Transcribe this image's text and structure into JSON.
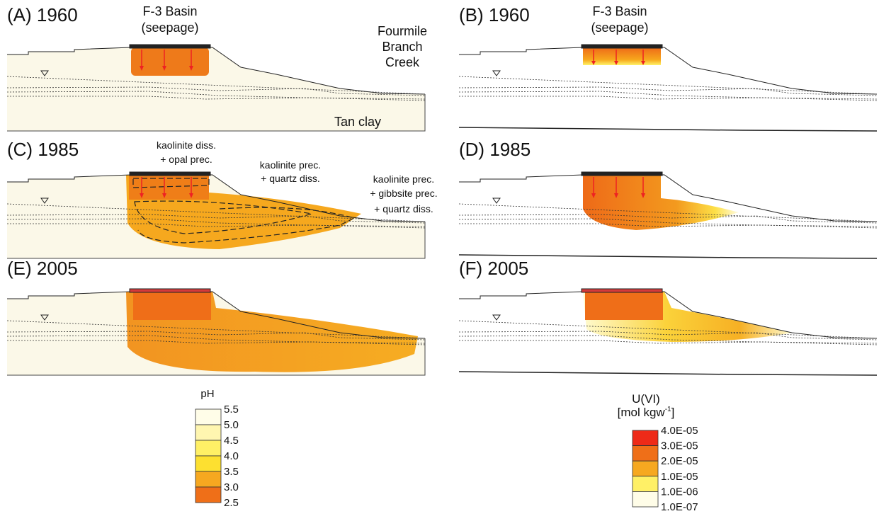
{
  "panels": [
    {
      "label": "(A) 1960",
      "notes": [
        "F-3 Basin",
        "(seepage)",
        "Fourmile",
        "Branch",
        "Creek",
        "Tan clay"
      ]
    },
    {
      "label": "(B) 1960",
      "notes": [
        "F-3 Basin",
        "(seepage)"
      ]
    },
    {
      "label": "(C) 1985",
      "notes": [
        "kaolinite diss.",
        "+ opal prec.",
        "kaolinite prec.",
        "+ quartz diss.",
        "kaolinite prec.",
        "+ gibbsite prec.",
        "+ quartz diss."
      ]
    },
    {
      "label": "(D) 1985",
      "notes": []
    },
    {
      "label": "(E) 2005",
      "notes": []
    },
    {
      "label": "(F) 2005",
      "notes": []
    }
  ],
  "legends": [
    {
      "title": [
        "pH"
      ],
      "labels": [
        "5.5",
        "5.0",
        "4.5",
        "4.0",
        "3.5",
        "3.0",
        "2.5"
      ]
    },
    {
      "title": [
        "U(VI)",
        "[mol kgw",
        "-1",
        "]"
      ],
      "labels": [
        "4.0E-05",
        "3.0E-05",
        "2.0E-05",
        "1.0E-05",
        "1.0E-06",
        "1.0E-07"
      ]
    }
  ]
}
